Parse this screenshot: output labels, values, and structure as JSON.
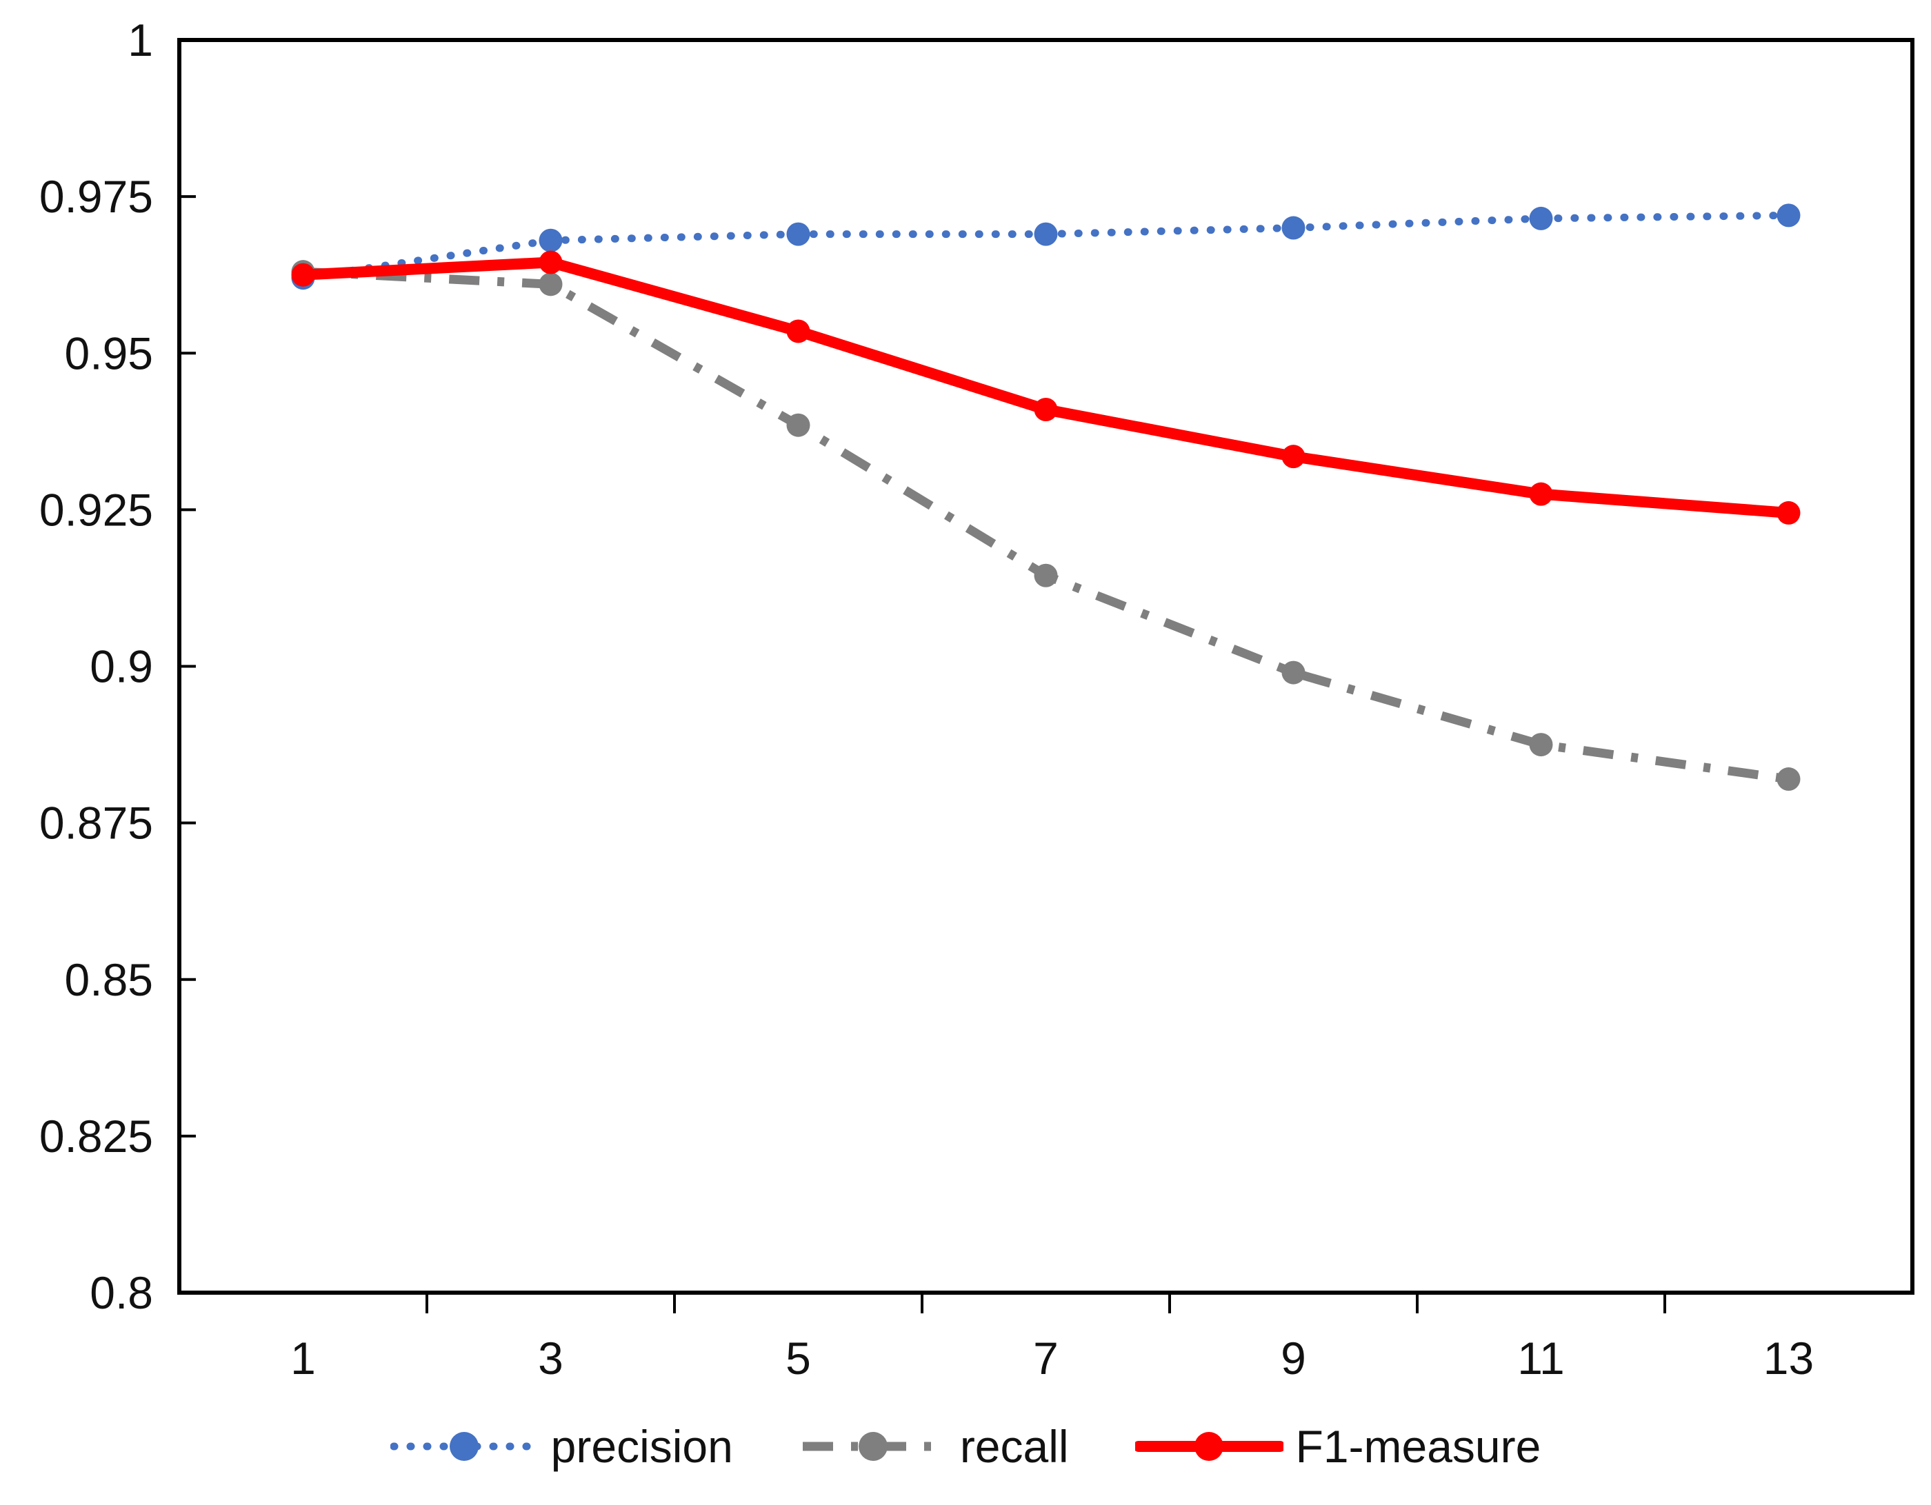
{
  "chart_data": {
    "type": "line",
    "title": "",
    "xlabel": "",
    "ylabel": "",
    "grid": false,
    "legend_position": "bottom",
    "x_categories": [
      "1",
      "3",
      "5",
      "7",
      "9",
      "11",
      "13"
    ],
    "ylim": [
      0.8,
      1.0
    ],
    "y_tick_labels": [
      "1",
      "0.975",
      "0.95",
      "0.925",
      "0.9",
      "0.875",
      "0.85",
      "0.825",
      "0.8"
    ],
    "y_tick_values": [
      1.0,
      0.975,
      0.95,
      0.925,
      0.9,
      0.875,
      0.85,
      0.825,
      0.8
    ],
    "series": [
      {
        "name": "precision",
        "color": "#4472C4",
        "line_style": "dotted",
        "marker": "circle",
        "values": [
          0.962,
          0.968,
          0.969,
          0.969,
          0.97,
          0.9715,
          0.972
        ]
      },
      {
        "name": "recall",
        "color": "#7F7F7F",
        "line_style": "dash-dot",
        "marker": "circle",
        "values": [
          0.963,
          0.961,
          0.9385,
          0.9145,
          0.899,
          0.8875,
          0.882
        ]
      },
      {
        "name": "F1-measure",
        "color": "#FF0000",
        "line_style": "solid",
        "marker": "circle",
        "values": [
          0.9625,
          0.9645,
          0.9535,
          0.941,
          0.9335,
          0.9275,
          0.9245
        ]
      }
    ],
    "axis_color": "#000000",
    "text_color": "#111111"
  }
}
